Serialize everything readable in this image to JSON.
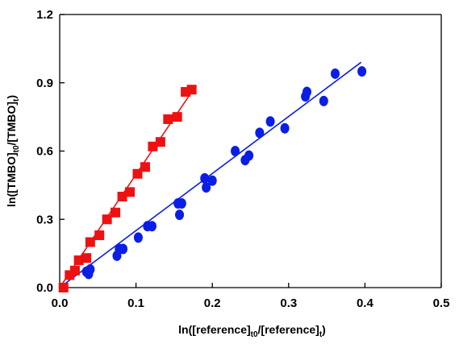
{
  "chart_data": {
    "type": "scatter",
    "title": "",
    "xlabel": {
      "main": "ln([reference]",
      "sub1": "t0",
      "mid": "/[reference]",
      "sub2": "t",
      "end": ")"
    },
    "ylabel": {
      "main": "ln([TMBO]",
      "sub1": "t0",
      "mid": "/[TMBO]",
      "sub2": "t",
      "end": ")"
    },
    "xlim": [
      0.0,
      0.5
    ],
    "ylim": [
      0.0,
      1.2
    ],
    "xticks": [
      "0.0",
      "0.1",
      "0.2",
      "0.3",
      "0.4",
      "0.5"
    ],
    "yticks": [
      "0.0",
      "0.3",
      "0.6",
      "0.9",
      "1.2"
    ],
    "grid": false,
    "legend": "none",
    "series": [
      {
        "marker": "square",
        "color": "#ee1111",
        "points": [
          [
            0.005,
            0.0
          ],
          [
            0.013,
            0.055
          ],
          [
            0.02,
            0.075
          ],
          [
            0.025,
            0.12
          ],
          [
            0.035,
            0.13
          ],
          [
            0.04,
            0.2
          ],
          [
            0.052,
            0.23
          ],
          [
            0.062,
            0.3
          ],
          [
            0.073,
            0.33
          ],
          [
            0.082,
            0.4
          ],
          [
            0.092,
            0.42
          ],
          [
            0.102,
            0.5
          ],
          [
            0.112,
            0.53
          ],
          [
            0.122,
            0.62
          ],
          [
            0.132,
            0.64
          ],
          [
            0.142,
            0.74
          ],
          [
            0.154,
            0.75
          ],
          [
            0.165,
            0.86
          ],
          [
            0.173,
            0.87
          ]
        ],
        "fit": [
          [
            0.0,
            0.0
          ],
          [
            0.173,
            0.86
          ]
        ]
      },
      {
        "marker": "circle",
        "color": "#0a1ee6",
        "points": [
          [
            0.035,
            0.07
          ],
          [
            0.038,
            0.06
          ],
          [
            0.04,
            0.08
          ],
          [
            0.075,
            0.14
          ],
          [
            0.078,
            0.17
          ],
          [
            0.083,
            0.17
          ],
          [
            0.103,
            0.22
          ],
          [
            0.115,
            0.27
          ],
          [
            0.121,
            0.27
          ],
          [
            0.155,
            0.37
          ],
          [
            0.16,
            0.37
          ],
          [
            0.157,
            0.32
          ],
          [
            0.19,
            0.48
          ],
          [
            0.192,
            0.44
          ],
          [
            0.2,
            0.47
          ],
          [
            0.23,
            0.6
          ],
          [
            0.243,
            0.56
          ],
          [
            0.248,
            0.58
          ],
          [
            0.262,
            0.68
          ],
          [
            0.276,
            0.73
          ],
          [
            0.295,
            0.7
          ],
          [
            0.322,
            0.84
          ],
          [
            0.324,
            0.86
          ],
          [
            0.346,
            0.82
          ],
          [
            0.361,
            0.94
          ],
          [
            0.396,
            0.95
          ]
        ],
        "fit": [
          [
            0.0,
            0.0
          ],
          [
            0.395,
            0.99
          ]
        ]
      }
    ]
  }
}
